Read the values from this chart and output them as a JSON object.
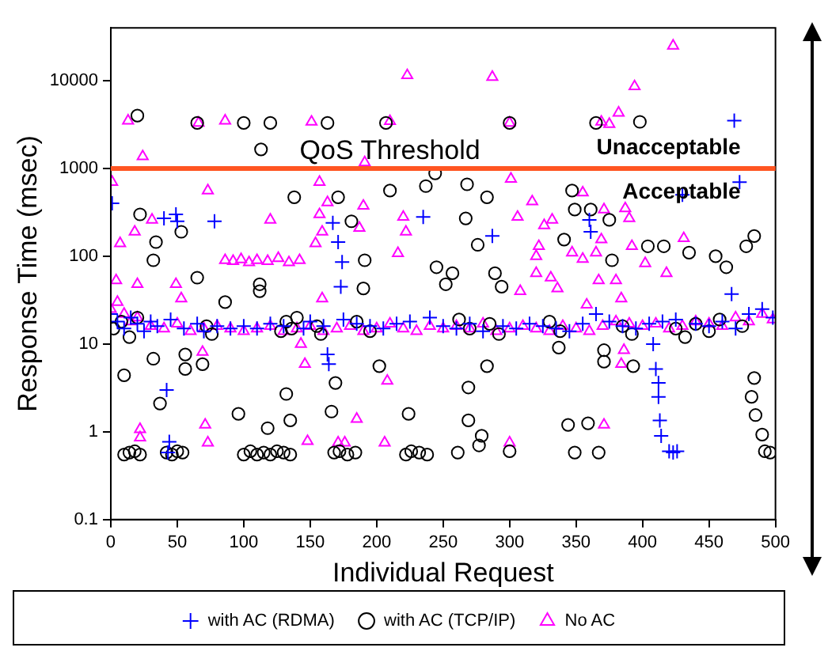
{
  "chart_data": {
    "type": "scatter",
    "xlabel": "Individual Request",
    "ylabel": "Response Time (msec)",
    "xlim": [
      0,
      500
    ],
    "xticks": [
      0,
      50,
      100,
      150,
      200,
      250,
      300,
      350,
      400,
      450,
      500
    ],
    "ylim": [
      0.1,
      40000
    ],
    "yticks": [
      0.1,
      1,
      10,
      100,
      1000,
      10000
    ],
    "log": "y",
    "grid": false,
    "legend": "bottom",
    "ref_lines": [
      {
        "axis": "y",
        "value": 1000,
        "label": "QoS Threshold",
        "color": "#ff5522"
      }
    ],
    "annotations": [
      "Unacceptable",
      "Acceptable"
    ],
    "series": [
      {
        "name": "with AC (RDMA)",
        "color": "#0000ff",
        "marker": "cross",
        "x": [
          0,
          5,
          10,
          15,
          20,
          25,
          30,
          35,
          45,
          55,
          65,
          70,
          80,
          90,
          100,
          110,
          120,
          130,
          145,
          150,
          160,
          175,
          185,
          195,
          205,
          215,
          225,
          240,
          250,
          260,
          270,
          280,
          295,
          305,
          315,
          325,
          335,
          345,
          355,
          365,
          375,
          385,
          395,
          405,
          415,
          425,
          440,
          450,
          460,
          470,
          480,
          490,
          498,
          1,
          40,
          49,
          50,
          78,
          167,
          171,
          174,
          173,
          235,
          42,
          163,
          164,
          44,
          43,
          469,
          473,
          430,
          287,
          360,
          361,
          467,
          408,
          410,
          412,
          412,
          413,
          414,
          420,
          423,
          426
        ],
        "values": [
          22,
          18,
          15,
          20,
          17,
          14,
          18,
          16,
          19,
          15,
          17,
          14,
          16,
          15,
          16,
          15,
          17,
          16,
          15,
          18,
          16,
          19,
          17,
          16,
          15,
          17,
          18,
          20,
          16,
          15,
          17,
          14,
          16,
          15,
          17,
          16,
          15,
          14,
          17,
          22,
          18,
          16,
          15,
          17,
          18,
          19,
          17,
          16,
          18,
          15,
          22,
          25,
          20,
          400,
          270,
          300,
          250,
          250,
          240,
          145,
          86,
          45,
          280,
          3,
          7.6,
          5.9,
          0.77,
          0.58,
          3500,
          700,
          500,
          170,
          260,
          190,
          37,
          10,
          5.2,
          3.6,
          2.5,
          1.35,
          0.9,
          0.6,
          0.58,
          0.6
        ]
      },
      {
        "name": "with AC (TCP/IP)",
        "color": "#000000",
        "marker": "circle",
        "x": [
          2,
          8,
          14,
          20,
          72,
          76,
          128,
          132,
          136,
          140,
          155,
          158,
          185,
          195,
          262,
          270,
          285,
          292,
          330,
          338,
          385,
          392,
          425,
          432,
          440,
          450,
          458,
          475,
          20,
          65,
          100,
          120,
          163,
          207,
          113,
          244,
          138,
          171,
          210,
          237,
          22,
          53,
          34,
          32,
          181,
          191,
          65,
          112,
          112,
          86,
          190,
          245,
          252,
          10,
          32,
          56,
          56,
          69,
          132,
          96,
          37,
          169,
          166,
          202,
          224,
          135,
          118,
          300,
          365,
          398,
          268,
          283,
          347,
          267,
          349,
          361,
          375,
          276,
          484,
          478,
          404,
          416,
          435,
          455,
          463,
          377,
          341,
          289,
          294,
          257,
          283,
          269,
          393,
          371,
          371,
          337,
          484,
          482,
          485,
          490,
          496,
          269,
          279,
          261,
          344,
          359,
          349,
          367,
          300,
          277,
          10,
          14,
          18,
          22,
          42,
          46,
          50,
          54,
          100,
          105,
          110,
          115,
          120,
          125,
          130,
          135,
          168,
          172,
          178,
          184,
          222,
          226,
          232,
          238,
          492
        ],
        "values": [
          15,
          18,
          12,
          20,
          16,
          13,
          14,
          18,
          15,
          20,
          16,
          13,
          18,
          14,
          19,
          15,
          17,
          13,
          18,
          14,
          16,
          13,
          15,
          12,
          17,
          14,
          19,
          16,
          4000,
          3300,
          3300,
          3300,
          3300,
          3300,
          1650,
          880,
          470,
          470,
          560,
          630,
          300,
          190,
          145,
          90,
          250,
          90,
          57,
          48,
          40,
          30,
          43,
          75,
          48,
          4.4,
          6.8,
          7.6,
          5.2,
          5.9,
          2.7,
          1.6,
          2.1,
          3.6,
          1.7,
          5.6,
          1.6,
          1.35,
          1.1,
          3300,
          3300,
          3400,
          660,
          470,
          560,
          270,
          340,
          340,
          260,
          135,
          170,
          130,
          130,
          130,
          110,
          100,
          75,
          90,
          155,
          64,
          45,
          64,
          5.6,
          3.2,
          5.6,
          8.5,
          6.3,
          9.1,
          4.1,
          2.5,
          1.55,
          0.93,
          0.58,
          1.35,
          0.9,
          0.58,
          1.2,
          1.25,
          0.58,
          0.58,
          0.6,
          0.7,
          0.55,
          0.58,
          0.6,
          0.55,
          0.58,
          0.55,
          0.6,
          0.58,
          0.55,
          0.6,
          0.55,
          0.58,
          0.55,
          0.6,
          0.58,
          0.55,
          0.58,
          0.6,
          0.55,
          0.58,
          0.55,
          0.6,
          0.58,
          0.55,
          0.6
        ]
      },
      {
        "name": "No AC",
        "color": "#ff00ff",
        "marker": "triangle",
        "x": [
          0,
          5,
          10,
          15,
          20,
          30,
          40,
          50,
          60,
          70,
          80,
          90,
          100,
          110,
          120,
          130,
          140,
          150,
          160,
          170,
          180,
          190,
          200,
          210,
          220,
          230,
          240,
          250,
          260,
          270,
          280,
          290,
          300,
          310,
          320,
          330,
          340,
          350,
          360,
          370,
          380,
          390,
          400,
          410,
          420,
          430,
          440,
          450,
          460,
          470,
          480,
          490,
          498,
          86,
          92,
          98,
          104,
          110,
          118,
          126,
          134,
          142,
          13,
          86,
          151,
          210,
          223,
          66,
          24,
          191,
          1,
          73,
          157,
          120,
          31,
          18,
          7,
          190,
          163,
          157,
          159,
          154,
          187,
          220,
          222,
          216,
          49,
          20,
          53,
          159,
          4,
          69,
          146,
          143,
          208,
          185,
          71,
          22,
          73,
          22,
          148,
          171,
          176,
          206,
          423,
          287,
          394,
          300,
          369,
          382,
          375,
          301,
          355,
          317,
          306,
          387,
          390,
          326,
          332,
          371,
          369,
          322,
          320,
          347,
          355,
          365,
          402,
          392,
          431,
          418,
          320,
          331,
          367,
          380,
          308,
          336,
          358,
          384,
          386,
          384,
          371,
          300
        ],
        "values": [
          25,
          30,
          22,
          18,
          20,
          16,
          15,
          17,
          14,
          15,
          16,
          15,
          14,
          15,
          16,
          14,
          15,
          16,
          14,
          15,
          16,
          14,
          15,
          17,
          15,
          14,
          16,
          15,
          16,
          15,
          17,
          14,
          15,
          16,
          15,
          14,
          16,
          15,
          14,
          16,
          18,
          17,
          16,
          17,
          15,
          16,
          18,
          17,
          16,
          20,
          18,
          22,
          19,
          90,
          88,
          92,
          85,
          90,
          88,
          95,
          85,
          90,
          3500,
          3500,
          3400,
          3450,
          11500,
          3300,
          1370,
          1170,
          700,
          560,
          700,
          260,
          260,
          190,
          140,
          375,
          410,
          300,
          190,
          140,
          210,
          280,
          190,
          108,
          48,
          48,
          33,
          33,
          53,
          8.1,
          5.9,
          10,
          3.8,
          1.4,
          1.2,
          1.07,
          0.75,
          0.86,
          0.78,
          0.75,
          0.75,
          0.75,
          25000,
          11000,
          8600,
          3300,
          3400,
          4300,
          3200,
          760,
          530,
          420,
          280,
          350,
          270,
          225,
          260,
          340,
          155,
          130,
          100,
          110,
          93,
          110,
          83,
          130,
          160,
          64,
          64,
          57,
          53,
          53,
          40,
          43,
          28,
          33,
          8.5,
          5.9,
          1.2,
          0.75
        ]
      }
    ]
  }
}
